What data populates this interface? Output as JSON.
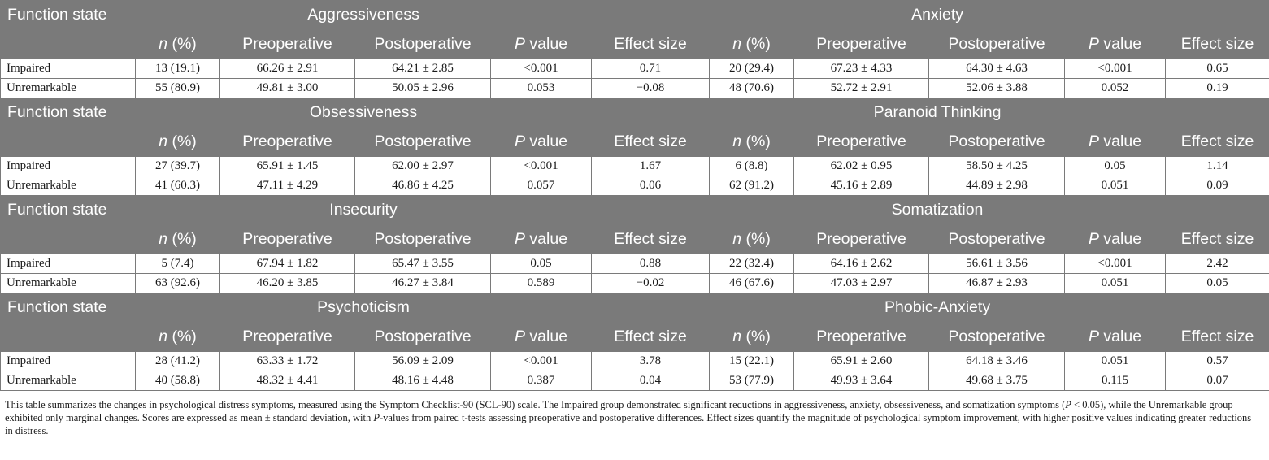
{
  "table": {
    "col_headers": {
      "function_state": "Function state",
      "n_symbol": "n",
      "n_suffix": " (%)",
      "preoperative": "Preoperative",
      "postoperative": "Postoperative",
      "p_symbol": "P",
      "p_suffix": " value",
      "effect_size": "Effect size"
    },
    "blocks": [
      {
        "left": "Aggressiveness",
        "right": "Anxiety",
        "rows": [
          {
            "label": "Impaired",
            "ln": "13 (19.1)",
            "lpre": "66.26 ± 2.91",
            "lpost": "64.21 ± 2.85",
            "lp": "<0.001",
            "les": "0.71",
            "rn": "20 (29.4)",
            "rpre": "67.23 ± 4.33",
            "rpost": "64.30 ± 4.63",
            "rp": "<0.001",
            "res": "0.65"
          },
          {
            "label": "Unremarkable",
            "ln": "55 (80.9)",
            "lpre": "49.81 ± 3.00",
            "lpost": "50.05 ± 2.96",
            "lp": "0.053",
            "les": "−0.08",
            "rn": "48 (70.6)",
            "rpre": "52.72 ± 2.91",
            "rpost": "52.06 ± 3.88",
            "rp": "0.052",
            "res": "0.19"
          }
        ]
      },
      {
        "left": "Obsessiveness",
        "right": "Paranoid Thinking",
        "rows": [
          {
            "label": "Impaired",
            "ln": "27 (39.7)",
            "lpre": "65.91 ± 1.45",
            "lpost": "62.00 ± 2.97",
            "lp": "<0.001",
            "les": "1.67",
            "rn": "6 (8.8)",
            "rpre": "62.02 ± 0.95",
            "rpost": "58.50 ± 4.25",
            "rp": "0.05",
            "res": "1.14"
          },
          {
            "label": "Unremarkable",
            "ln": "41 (60.3)",
            "lpre": "47.11 ± 4.29",
            "lpost": "46.86 ± 4.25",
            "lp": "0.057",
            "les": "0.06",
            "rn": "62 (91.2)",
            "rpre": "45.16 ± 2.89",
            "rpost": "44.89 ± 2.98",
            "rp": "0.051",
            "res": "0.09"
          }
        ]
      },
      {
        "left": "Insecurity",
        "right": "Somatization",
        "rows": [
          {
            "label": "Impaired",
            "ln": "5 (7.4)",
            "lpre": "67.94 ± 1.82",
            "lpost": "65.47 ± 3.55",
            "lp": "0.05",
            "les": "0.88",
            "rn": "22 (32.4)",
            "rpre": "64.16 ± 2.62",
            "rpost": "56.61 ± 3.56",
            "rp": "<0.001",
            "res": "2.42"
          },
          {
            "label": "Unremarkable",
            "ln": "63 (92.6)",
            "lpre": "46.20 ± 3.85",
            "lpost": "46.27 ± 3.84",
            "lp": "0.589",
            "les": "−0.02",
            "rn": "46 (67.6)",
            "rpre": "47.03 ± 2.97",
            "rpost": "46.87 ± 2.93",
            "rp": "0.051",
            "res": "0.05"
          }
        ]
      },
      {
        "left": "Psychoticism",
        "right": "Phobic-Anxiety",
        "rows": [
          {
            "label": "Impaired",
            "ln": "28 (41.2)",
            "lpre": "63.33 ± 1.72",
            "lpost": "56.09 ± 2.09",
            "lp": "<0.001",
            "les": "3.78",
            "rn": "15 (22.1)",
            "rpre": "65.91 ± 2.60",
            "rpost": "64.18 ± 3.46",
            "rp": "0.051",
            "res": "0.57"
          },
          {
            "label": "Unremarkable",
            "ln": "40 (58.8)",
            "lpre": "48.32 ± 4.41",
            "lpost": "48.16 ± 4.48",
            "lp": "0.387",
            "les": "0.04",
            "rn": "53 (77.9)",
            "rpre": "49.93 ± 3.64",
            "rpost": "49.68 ± 3.75",
            "rp": "0.115",
            "res": "0.07"
          }
        ]
      }
    ]
  },
  "footnote": {
    "part1": "This table summarizes the changes in psychological distress symptoms, measured using the Symptom Checklist-90 (SCL-90) scale. The Impaired group demonstrated significant reductions in aggressiveness, anxiety, obsessiveness, and somatization symptoms (",
    "p_symbol": "P",
    "part2": " < 0.05), while the Unremarkable group exhibited only marginal changes. Scores are expressed as mean ± standard deviation, with ",
    "part3": "-values from paired t-tests assessing preoperative and postoperative differences. Effect sizes quantify the magnitude of psychological symptom improvement, with higher positive values indicating greater reductions in distress."
  },
  "colors": {
    "header_bg": "#7a7a7a",
    "header_text": "#ffffff",
    "border": "#7a7a7a"
  }
}
